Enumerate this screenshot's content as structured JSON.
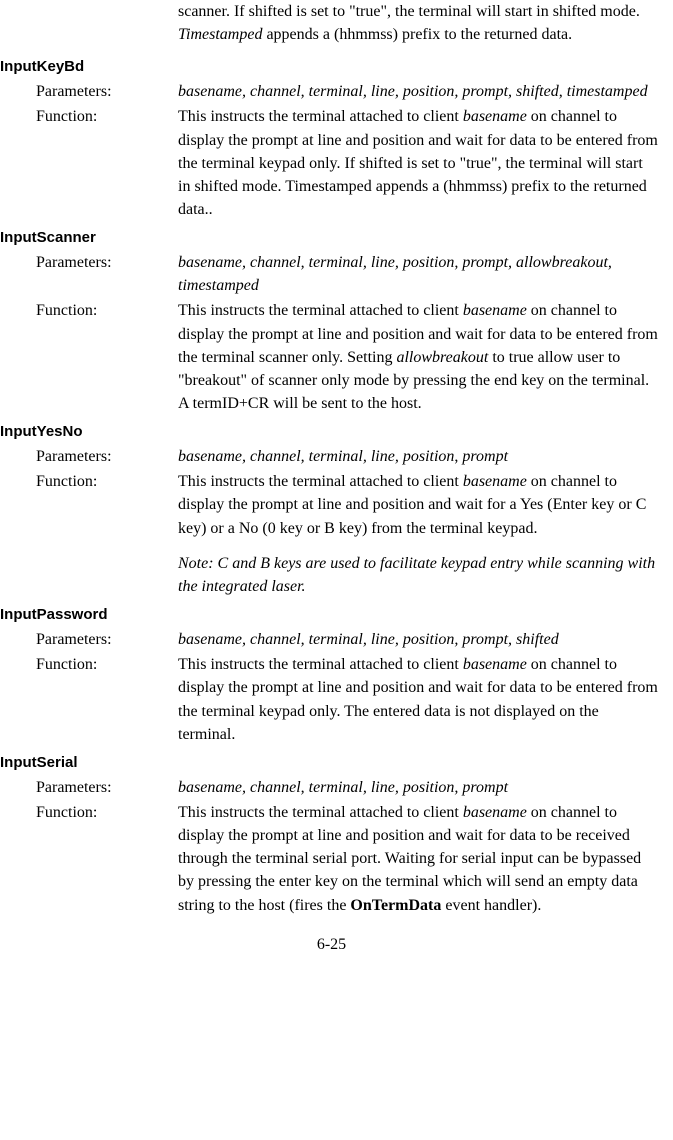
{
  "intro": {
    "text_parts": [
      "scanner. If shifted is set to \"true\", the terminal will start in shifted mode. ",
      "Timestamped",
      " appends a (hhmmss) prefix to the returned data."
    ]
  },
  "labels": {
    "parameters": "Parameters:",
    "function": "Function:"
  },
  "sections": {
    "inputKeyBd": {
      "title": "InputKeyBd",
      "parameters": "basename, channel, terminal, line, position, prompt, shifted, timestamped",
      "function_parts": [
        "This instructs the terminal attached to client ",
        "basename",
        " on channel to display the prompt at line and position and wait for data to be entered from the terminal keypad only. If shifted is set to \"true\", the terminal will start in shifted mode. Timestamped appends a (hhmmss) prefix to the returned data.."
      ]
    },
    "inputScanner": {
      "title": "InputScanner",
      "parameters": "basename, channel, terminal, line, position, prompt, allowbreakout, timestamped",
      "function_parts": [
        "This instructs the terminal attached to client ",
        "basename",
        " on channel to display the prompt at line and position and wait for data to be entered from the terminal scanner only. Setting ",
        "allowbreakout",
        " to true allow user to \"breakout\" of scanner only mode by pressing the end key on the terminal. A termID+CR will be sent to the host."
      ]
    },
    "inputYesNo": {
      "title": "InputYesNo",
      "parameters_parts": [
        "basename, channel, terminal, line, position",
        ", ",
        "prompt"
      ],
      "function_parts": [
        "This instructs the terminal attached to client ",
        "basename",
        " on channel to display the prompt at line and position and wait for a Yes (Enter key or C key) or a No (0 key or B key) from the terminal keypad."
      ],
      "note": "Note: C and B keys are used to facilitate keypad entry while scanning with the integrated laser."
    },
    "inputPassword": {
      "title": "InputPassword",
      "parameters": "basename, channel, terminal, line, position, prompt, shifted",
      "function_parts": [
        "This instructs the terminal attached to client ",
        "basename",
        " on channel to display the prompt at line and position and wait for data to be entered from the terminal keypad only. The entered data is not displayed on the terminal."
      ]
    },
    "inputSerial": {
      "title": "InputSerial",
      "parameters": "basename, channel, terminal, line, position, prompt",
      "function_parts": [
        "This instructs the terminal attached to client ",
        "basename",
        " on channel to display the prompt at line and position and wait for data to be received through the terminal serial port. Waiting for serial input can be bypassed by pressing the enter key on the terminal which will send an empty data string to the host (fires the ",
        "OnTermData",
        " event handler)."
      ]
    }
  },
  "pageNumber": "6-25"
}
